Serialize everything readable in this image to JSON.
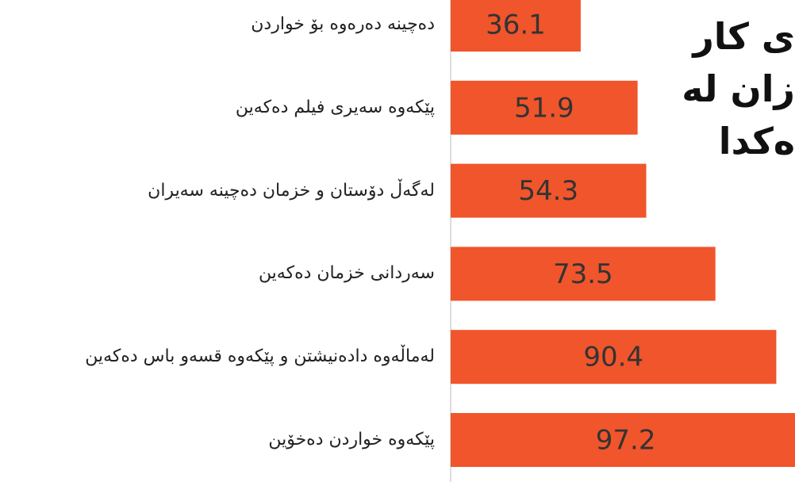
{
  "chart_data": {
    "type": "bar",
    "orientation": "horizontal",
    "title_lines": [
      "ی کار",
      "زان له",
      "ەکدا"
    ],
    "categories": [
      "دەچینە دەرەوە بۆ خواردن",
      "پێکەوە سەیری فیلم دەکەین",
      "لەگەڵ دۆستان و خزمان دەچینە سەیران",
      "سەردانی خزمان دەکەین",
      "لەماڵەوە دادەنیشتن و پێکەوە قسەو باس دەکەین",
      "پێکەوە خواردن دەخۆین"
    ],
    "values": [
      36.1,
      51.9,
      54.3,
      73.5,
      90.4,
      97.2
    ],
    "color": "#f0552b",
    "xlim": [
      0,
      100
    ]
  }
}
